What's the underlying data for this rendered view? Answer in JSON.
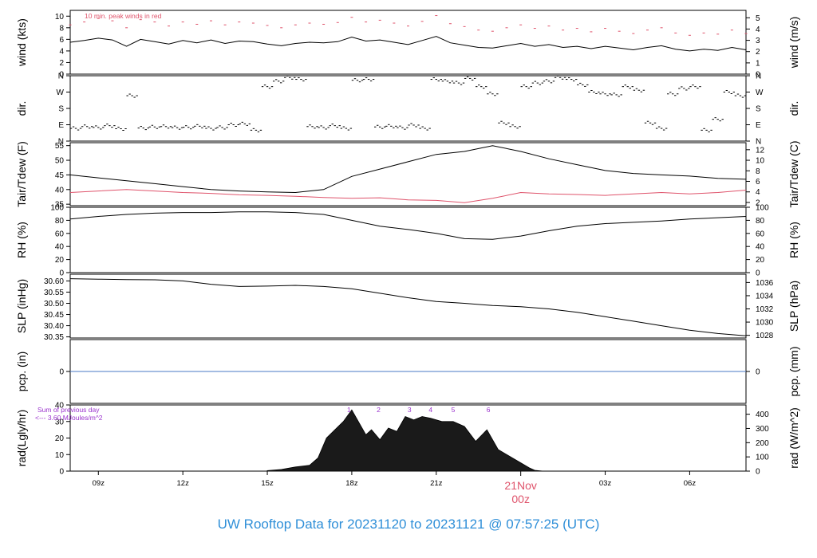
{
  "footer_title": "UW Rooftop Data for 20231120  to  20231121 @ 07:57:25  (UTC)",
  "colors": {
    "ink": "#000000",
    "red": "#df536b",
    "blue": "#2f8fd8",
    "purple": "#9a32cd",
    "pcp_line": "#4a79c5"
  },
  "x_axis": {
    "start": "2023-11-20T08:00Z",
    "end": "2023-11-21T08:00Z",
    "ticks": [
      {
        "label": "09z",
        "time": "2023-11-20T09:00Z"
      },
      {
        "label": "12z",
        "time": "2023-11-20T12:00Z"
      },
      {
        "label": "15z",
        "time": "2023-11-20T15:00Z"
      },
      {
        "label": "18z",
        "time": "2023-11-20T18:00Z"
      },
      {
        "label": "21z",
        "time": "2023-11-20T21:00Z"
      },
      {
        "label": "03z",
        "time": "2023-11-21T03:00Z"
      },
      {
        "label": "06z",
        "time": "2023-11-21T06:00Z"
      }
    ],
    "day_marker": {
      "date": "21Nov",
      "hour": "00z",
      "time": "2023-11-21T00:00Z"
    }
  },
  "chart_data": [
    {
      "id": "wind",
      "type": "line",
      "ylabel_left": "wind (kts)",
      "ylabel_right": "wind (m/s)",
      "ylim": [
        0,
        11
      ],
      "yticks_left": [
        0,
        2,
        4,
        6,
        8,
        10
      ],
      "yticks_right": [
        {
          "label": "0",
          "value": 0
        },
        {
          "label": "1",
          "value": 1.94
        },
        {
          "label": "2",
          "value": 3.89
        },
        {
          "label": "3",
          "value": 5.83
        },
        {
          "label": "4",
          "value": 7.78
        },
        {
          "label": "5",
          "value": 9.72
        }
      ],
      "annotation": "10 min. peak winds in red",
      "series": [
        {
          "color": "#000000",
          "x": [
            8.0,
            8.5,
            9.0,
            9.5,
            10.0,
            10.5,
            11.0,
            11.5,
            12.0,
            12.5,
            13.0,
            13.5,
            14.0,
            14.5,
            15.0,
            15.5,
            16.0,
            16.5,
            17.0,
            17.5,
            18.0,
            18.5,
            19.0,
            19.5,
            20.0,
            20.5,
            21.0,
            21.5,
            22.0,
            22.5,
            23.0,
            23.5,
            24.0,
            24.5,
            25.0,
            25.5,
            26.0,
            26.5,
            27.0,
            27.5,
            28.0,
            28.5,
            29.0,
            29.5,
            30.0,
            30.5,
            31.0,
            31.5,
            32.0
          ],
          "values": [
            5.5,
            5.8,
            6.2,
            5.9,
            4.8,
            6.0,
            5.6,
            5.2,
            5.8,
            5.4,
            5.9,
            5.3,
            5.7,
            5.6,
            5.2,
            4.9,
            5.3,
            5.5,
            5.4,
            5.6,
            6.4,
            5.7,
            5.9,
            5.5,
            5.1,
            5.8,
            6.5,
            5.4,
            5.0,
            4.6,
            4.5,
            4.9,
            5.3,
            4.8,
            5.1,
            4.6,
            4.8,
            4.4,
            4.8,
            4.5,
            4.2,
            4.6,
            4.9,
            4.3,
            4.0,
            4.3,
            4.1,
            4.6,
            4.2
          ]
        },
        {
          "color": "#df536b",
          "style": "dashes",
          "x": [
            8.0,
            8.5,
            9.0,
            9.5,
            10.0,
            10.5,
            11.0,
            11.5,
            12.0,
            12.5,
            13.0,
            13.5,
            14.0,
            14.5,
            15.0,
            15.5,
            16.0,
            16.5,
            17.0,
            17.5,
            18.0,
            18.5,
            19.0,
            19.5,
            20.0,
            20.5,
            21.0,
            21.5,
            22.0,
            22.5,
            23.0,
            23.5,
            24.0,
            24.5,
            25.0,
            25.5,
            26.0,
            26.5,
            27.0,
            27.5,
            28.0,
            28.5,
            29.0,
            29.5,
            30.0,
            30.5,
            31.0,
            31.5,
            32.0
          ],
          "values": [
            8.5,
            9.0,
            9.6,
            9.2,
            8.0,
            9.4,
            9.0,
            8.3,
            9.0,
            8.6,
            9.2,
            8.5,
            9.0,
            8.8,
            8.4,
            8.0,
            8.5,
            8.8,
            8.6,
            8.9,
            9.8,
            9.0,
            9.3,
            8.8,
            8.3,
            9.1,
            10.1,
            8.7,
            8.2,
            7.6,
            7.4,
            8.0,
            8.5,
            7.9,
            8.3,
            7.6,
            7.9,
            7.3,
            7.9,
            7.4,
            7.0,
            7.6,
            8.0,
            7.1,
            6.7,
            7.1,
            6.9,
            7.6,
            7.0
          ]
        }
      ]
    },
    {
      "id": "dir",
      "type": "scatter",
      "ylabel_left": "dir.",
      "ylabel_right": "dir.",
      "ylim": [
        0,
        360
      ],
      "yticks": [
        {
          "label": "N",
          "value": 0
        },
        {
          "label": "E",
          "value": 90
        },
        {
          "label": "S",
          "value": 180
        },
        {
          "label": "W",
          "value": 270
        },
        {
          "label": "N",
          "value": 360
        }
      ],
      "x": [
        8.2,
        8.6,
        9.0,
        9.4,
        9.8,
        10.2,
        10.6,
        11.0,
        11.4,
        11.8,
        12.2,
        12.6,
        13.0,
        13.4,
        13.8,
        14.2,
        14.6,
        15.0,
        15.4,
        15.8,
        16.2,
        16.6,
        17.0,
        17.4,
        17.8,
        18.2,
        18.6,
        19.0,
        19.4,
        19.8,
        20.2,
        20.6,
        21.0,
        21.4,
        21.8,
        22.2,
        22.6,
        23.0,
        23.4,
        23.8,
        24.2,
        24.6,
        25.0,
        25.4,
        25.8,
        26.2,
        26.6,
        27.0,
        27.4,
        27.8,
        28.2,
        28.6,
        29.0,
        29.4,
        29.8,
        30.2,
        30.6,
        31.0,
        31.4,
        31.8
      ],
      "values": [
        70,
        80,
        75,
        85,
        68,
        250,
        72,
        78,
        80,
        74,
        76,
        82,
        70,
        75,
        90,
        95,
        60,
        300,
        330,
        350,
        340,
        80,
        75,
        85,
        70,
        335,
        340,
        78,
        82,
        74,
        88,
        70,
        340,
        330,
        320,
        345,
        300,
        260,
        100,
        80,
        300,
        320,
        330,
        350,
        340,
        310,
        270,
        260,
        255,
        300,
        280,
        100,
        70,
        260,
        290,
        300,
        60,
        120,
        270,
        250
      ]
    },
    {
      "id": "temp",
      "type": "line",
      "ylabel_left": "Tair/Tdew (F)",
      "ylabel_right": "Tair/Tdew (C)",
      "ylim": [
        34.5,
        56
      ],
      "yticks_left": [
        35,
        40,
        45,
        50,
        55
      ],
      "yticks_right": [
        {
          "label": "2",
          "value": 35.6
        },
        {
          "label": "4",
          "value": 39.2
        },
        {
          "label": "6",
          "value": 42.8
        },
        {
          "label": "8",
          "value": 46.4
        },
        {
          "label": "10",
          "value": 50
        },
        {
          "label": "12",
          "value": 53.6
        }
      ],
      "series": [
        {
          "color": "#000000",
          "x": [
            8,
            9,
            10,
            11,
            12,
            13,
            14,
            15,
            16,
            17,
            18,
            19,
            20,
            21,
            22,
            23,
            24,
            25,
            26,
            27,
            28,
            29,
            30,
            31,
            32
          ],
          "values": [
            45.0,
            44.0,
            43.0,
            42.0,
            41.0,
            40.0,
            39.5,
            39.2,
            39.0,
            40.0,
            44.5,
            47.0,
            49.5,
            52.0,
            53.0,
            55.0,
            53.0,
            50.5,
            48.5,
            46.5,
            45.5,
            45.0,
            44.6,
            43.8,
            43.5
          ]
        },
        {
          "color": "#df536b",
          "x": [
            8,
            9,
            10,
            11,
            12,
            13,
            14,
            15,
            16,
            17,
            18,
            19,
            20,
            21,
            22,
            23,
            24,
            25,
            26,
            27,
            28,
            29,
            30,
            31,
            32
          ],
          "values": [
            39.0,
            39.5,
            40.0,
            39.5,
            39.0,
            38.7,
            38.2,
            38.0,
            37.7,
            37.3,
            37.0,
            37.2,
            36.5,
            36.3,
            35.5,
            37.0,
            39.0,
            38.5,
            38.3,
            38.0,
            38.5,
            39.0,
            38.5,
            39.0,
            39.8
          ]
        }
      ]
    },
    {
      "id": "rh",
      "type": "line",
      "ylabel_left": "RH (%)",
      "ylabel_right": "RH (%)",
      "ylim": [
        0,
        100
      ],
      "yticks_left": [
        0,
        20,
        40,
        60,
        80,
        100
      ],
      "yticks_right": [
        {
          "label": "0",
          "value": 0
        },
        {
          "label": "20",
          "value": 20
        },
        {
          "label": "40",
          "value": 40
        },
        {
          "label": "60",
          "value": 60
        },
        {
          "label": "80",
          "value": 80
        },
        {
          "label": "100",
          "value": 100
        }
      ],
      "series": [
        {
          "color": "#000000",
          "x": [
            8,
            9,
            10,
            11,
            12,
            13,
            14,
            15,
            16,
            17,
            18,
            19,
            20,
            21,
            22,
            23,
            24,
            25,
            26,
            27,
            28,
            29,
            30,
            31,
            32
          ],
          "values": [
            82,
            86,
            89,
            91,
            92,
            92,
            93,
            93,
            92,
            89,
            80,
            71,
            66,
            60,
            52,
            51,
            56,
            64,
            71,
            75,
            77,
            79,
            82,
            84,
            86
          ]
        }
      ]
    },
    {
      "id": "slp",
      "type": "line",
      "ylabel_left": "SLP (inHg)",
      "ylabel_right": "SLP (hPa)",
      "ylim": [
        30.345,
        30.63
      ],
      "yticks_left": [
        30.35,
        30.4,
        30.45,
        30.5,
        30.55,
        30.6
      ],
      "yticks_labels_left": [
        "30.35",
        "30.40",
        "30.45",
        "30.50",
        "30.55",
        "30.60"
      ],
      "yticks_right": [
        {
          "label": "1028",
          "value": 30.357
        },
        {
          "label": "1030",
          "value": 30.416
        },
        {
          "label": "1032",
          "value": 30.475
        },
        {
          "label": "1034",
          "value": 30.534
        },
        {
          "label": "1036",
          "value": 30.593
        }
      ],
      "series": [
        {
          "color": "#000000",
          "x": [
            8,
            9,
            10,
            11,
            12,
            13,
            14,
            15,
            16,
            17,
            18,
            19,
            20,
            21,
            22,
            23,
            24,
            25,
            26,
            27,
            28,
            29,
            30,
            31,
            32
          ],
          "values": [
            30.61,
            30.608,
            30.606,
            30.605,
            30.6,
            30.585,
            30.575,
            30.577,
            30.58,
            30.575,
            30.565,
            30.545,
            30.525,
            30.508,
            30.5,
            30.49,
            30.485,
            30.475,
            30.46,
            30.44,
            30.42,
            30.4,
            30.38,
            30.365,
            30.355
          ]
        }
      ]
    },
    {
      "id": "pcp",
      "type": "line",
      "ylabel_left": "pcp. (in)",
      "ylabel_right": "pcp. (mm)",
      "ylim": [
        -1,
        1
      ],
      "yticks_left": [
        0
      ],
      "yticks_right": [
        {
          "label": "0",
          "value": 0
        }
      ],
      "series": [
        {
          "color": "#4a79c5",
          "x": [
            8,
            32
          ],
          "values": [
            0,
            0
          ]
        }
      ]
    },
    {
      "id": "rad",
      "type": "area",
      "ylabel_left": "rad(Lgly/hr)",
      "ylabel_right": "rad (W/m^2)",
      "ylim": [
        0,
        40
      ],
      "yticks_left": [
        0,
        10,
        20,
        30,
        40
      ],
      "yticks_right": [
        {
          "label": "0",
          "value": 0
        },
        {
          "label": "100",
          "value": 8.6
        },
        {
          "label": "200",
          "value": 17.2
        },
        {
          "label": "300",
          "value": 25.8
        },
        {
          "label": "400",
          "value": 34.4
        }
      ],
      "annotation_lines": [
        "Sum of previous day",
        "<--- 3.60 MJoules/m^2"
      ],
      "hour_marks": [
        {
          "label": "1",
          "x": 17.9
        },
        {
          "label": "2",
          "x": 18.95
        },
        {
          "label": "3",
          "x": 20.05
        },
        {
          "label": "4",
          "x": 20.8
        },
        {
          "label": "5",
          "x": 21.6
        },
        {
          "label": "6",
          "x": 22.85
        }
      ],
      "series": [
        {
          "color": "#000000",
          "x": [
            15.0,
            15.5,
            16.0,
            16.5,
            16.8,
            17.1,
            17.4,
            17.7,
            18.0,
            18.3,
            18.5,
            18.7,
            19.0,
            19.3,
            19.6,
            19.9,
            20.2,
            20.5,
            20.8,
            21.2,
            21.6,
            22.0,
            22.4,
            22.8,
            23.2,
            23.6,
            24.0,
            24.3,
            24.5,
            24.8
          ],
          "values": [
            0.3,
            1.0,
            2.5,
            3.5,
            8.0,
            20.0,
            25.0,
            30.0,
            37.0,
            28.0,
            22.0,
            25.0,
            19.0,
            26.0,
            24.0,
            33.0,
            31.0,
            33.0,
            32.0,
            30.0,
            30.0,
            27.0,
            18.0,
            25.0,
            13.0,
            9.0,
            5.0,
            2.0,
            0.5,
            0.0
          ]
        }
      ]
    }
  ]
}
